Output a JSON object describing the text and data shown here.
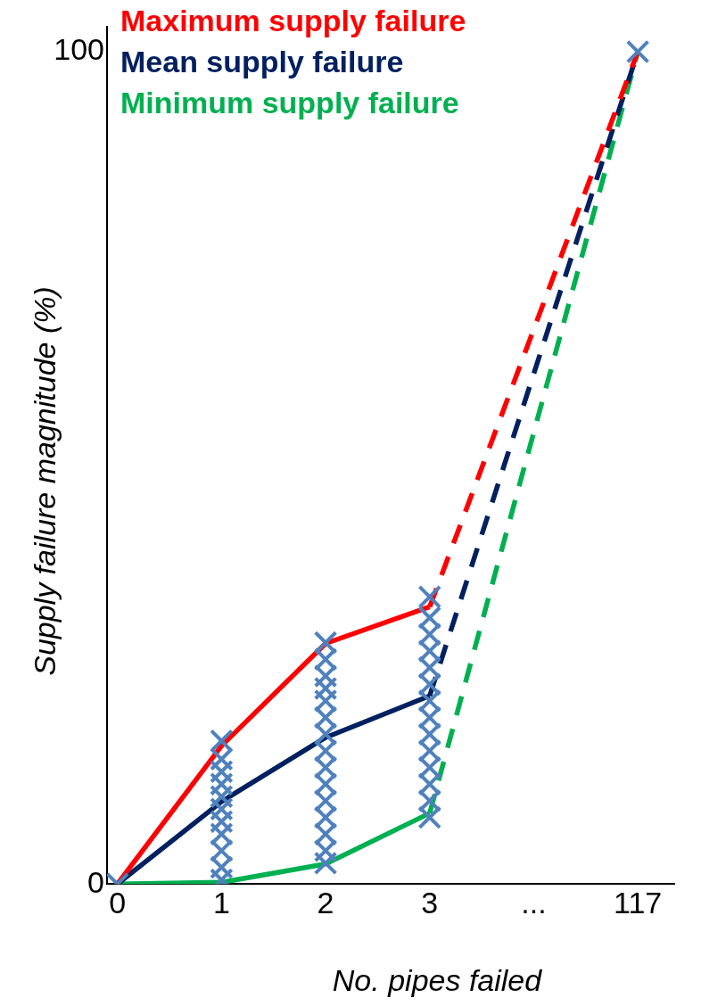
{
  "chart_data": {
    "type": "line",
    "xlabel": "No. pipes failed",
    "ylabel": "Supply failure magnitude (%)",
    "categories": [
      "0",
      "1",
      "2",
      "3",
      "...",
      "117"
    ],
    "ylim": [
      0,
      103
    ],
    "yticks": [
      0,
      100
    ],
    "grid": false,
    "legend": "top left",
    "line_style": "solid",
    "series": [
      {
        "name": "Maximum supply failure",
        "color": "#ff0000",
        "values": [
          0,
          16.6,
          28.9,
          33.3,
          null,
          null
        ]
      },
      {
        "name": "Mean supply failure",
        "color": "#002060",
        "values": [
          0,
          9.9,
          17.6,
          22.6,
          null,
          null
        ]
      },
      {
        "name": "Minimum supply failure",
        "color": "#00b050",
        "values": [
          0,
          0.2,
          2.4,
          8.5,
          null,
          null
        ]
      },
      {
        "type": "line",
        "line_style": "dashed",
        "color": "#ff0000",
        "values": [
          null,
          null,
          null,
          33.3,
          null,
          100
        ]
      },
      {
        "type": "line",
        "line_style": "dashed",
        "color": "#002060",
        "values": [
          null,
          null,
          null,
          22.6,
          null,
          100
        ]
      },
      {
        "type": "line",
        "line_style": "dashed",
        "color": "#00b050",
        "values": [
          null,
          null,
          null,
          8.5,
          null,
          100
        ]
      },
      {
        "type": "scatter",
        "marker": "cross",
        "color": "#4f81bd",
        "x": [
          "0",
          "1",
          "1",
          "1",
          "1",
          "1",
          "1",
          "1",
          "1",
          "1",
          "1",
          "1",
          "2",
          "2",
          "2",
          "2",
          "2",
          "2",
          "2",
          "2",
          "2",
          "2",
          "2",
          "2",
          "2",
          "2",
          "2",
          "3",
          "3",
          "3",
          "3",
          "3",
          "3",
          "3",
          "3",
          "3",
          "3",
          "3",
          "3",
          "3",
          "3",
          "117"
        ],
        "values": [
          0,
          17.2,
          15,
          13.5,
          12,
          10.5,
          9,
          7.5,
          6,
          4,
          2,
          0.5,
          29,
          27,
          25,
          23.5,
          22,
          20,
          18,
          16,
          14,
          12,
          10,
          8,
          6,
          4,
          2.5,
          34.5,
          32,
          30,
          28,
          26,
          24,
          22,
          20,
          18,
          16,
          14,
          12,
          10,
          8,
          100
        ]
      }
    ]
  }
}
